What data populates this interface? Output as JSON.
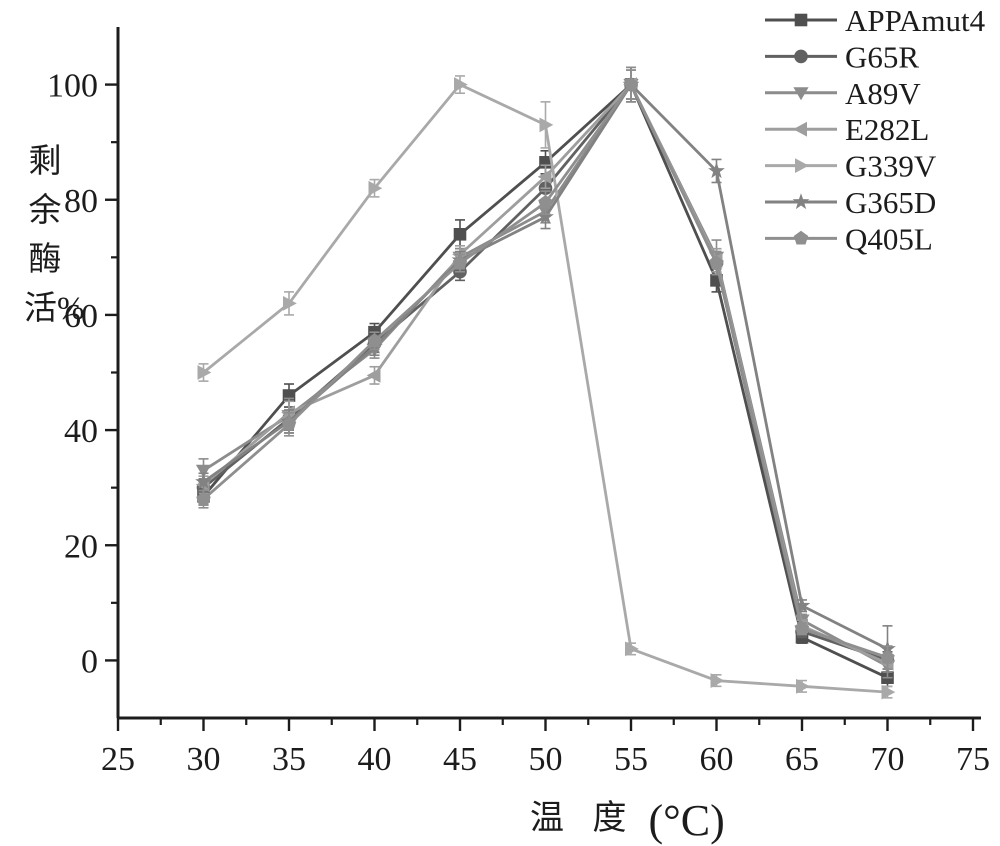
{
  "figure": {
    "background": "#ffffff",
    "axis_color": "#1c1c1c"
  },
  "chart_data": {
    "type": "line",
    "title": "",
    "xlabel_cjk": "温 度",
    "xlabel_unit": "(°C)",
    "ylabel": "剩余酶活%",
    "xlim": [
      25,
      75
    ],
    "ylim": [
      -10,
      110
    ],
    "x": [
      30,
      35,
      40,
      45,
      50,
      55,
      60,
      65,
      70
    ],
    "x_major_ticks": [
      25,
      30,
      35,
      40,
      45,
      50,
      55,
      60,
      65,
      70,
      75
    ],
    "x_minor_ticks": [
      27.5,
      32.5,
      37.5,
      42.5,
      47.5,
      52.5,
      57.5,
      62.5,
      67.5,
      72.5
    ],
    "y_major_ticks": [
      0,
      20,
      40,
      60,
      80,
      100
    ],
    "y_minor_ticks": [
      10,
      30,
      50,
      70,
      90
    ],
    "grid": false,
    "legend_position": "top-right",
    "series": [
      {
        "name": "APPAmut4",
        "marker": "square",
        "color": "#4f4f4f",
        "values": [
          28.5,
          46,
          57,
          74,
          86.5,
          100,
          66,
          4,
          -3
        ],
        "errors": [
          1.5,
          2,
          1.5,
          2.5,
          2,
          3,
          2,
          1,
          1.5
        ]
      },
      {
        "name": "G65R",
        "marker": "circle",
        "color": "#616161",
        "values": [
          30,
          42,
          55,
          67.5,
          82,
          100,
          69,
          5,
          0
        ],
        "errors": [
          1.5,
          2,
          1.5,
          1.5,
          2,
          2.5,
          2,
          1,
          1.5
        ]
      },
      {
        "name": "A89V",
        "marker": "triangle-down",
        "color": "#8c8c8c",
        "values": [
          33,
          42.5,
          54,
          70,
          78,
          100,
          70,
          7,
          -1
        ],
        "errors": [
          2,
          3,
          1.5,
          1.5,
          2,
          3,
          3,
          1,
          2
        ]
      },
      {
        "name": "E282L",
        "marker": "triangle-left",
        "color": "#9e9e9e",
        "values": [
          30.5,
          43,
          49.5,
          70.5,
          84,
          100,
          69.5,
          6,
          -0.5
        ],
        "errors": [
          1.5,
          2,
          1.5,
          1.5,
          2,
          2.5,
          2,
          1,
          1.5
        ]
      },
      {
        "name": "G339V",
        "marker": "triangle-right",
        "color": "#a9a9a9",
        "values": [
          50,
          62,
          82,
          100,
          93,
          2,
          -3.5,
          -4.5,
          -5.5
        ],
        "errors": [
          1.5,
          2,
          1.5,
          1.5,
          4,
          1,
          1,
          1,
          1
        ]
      },
      {
        "name": "G365D",
        "marker": "star",
        "color": "#828282",
        "values": [
          31,
          41.5,
          54.5,
          69.5,
          77,
          100,
          85,
          9.5,
          2
        ],
        "errors": [
          1.5,
          2,
          1.5,
          1.5,
          2,
          2.5,
          2,
          1,
          4
        ]
      },
      {
        "name": "Q405L",
        "marker": "pentagon",
        "color": "#8f8f8f",
        "values": [
          28,
          41,
          55.5,
          69,
          79.5,
          100,
          69,
          5.5,
          0.5
        ],
        "errors": [
          1.5,
          2,
          1.5,
          1.5,
          2,
          2.5,
          2,
          1,
          2
        ]
      }
    ]
  }
}
